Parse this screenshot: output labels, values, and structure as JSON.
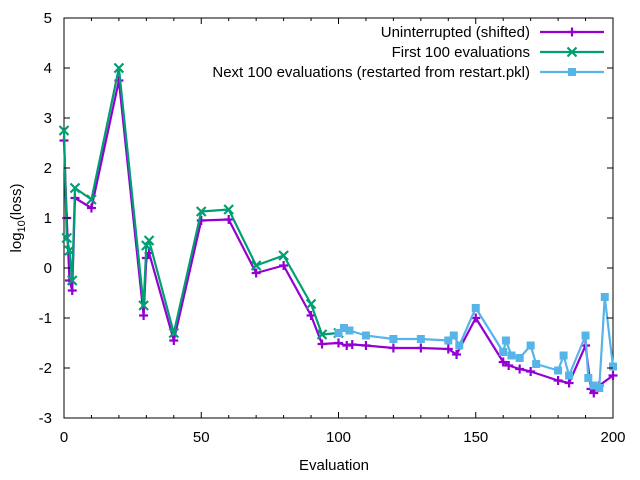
{
  "chart_data": {
    "type": "line",
    "title": "",
    "xlabel": "Evaluation",
    "ylabel": {
      "prefix": "log",
      "sub": "10",
      "suffix": "(loss)"
    },
    "xlim": [
      0,
      200
    ],
    "ylim": [
      -3,
      5
    ],
    "xticks": [
      "0",
      "50",
      "100",
      "150",
      "200"
    ],
    "yticks": [
      "-3",
      "-2",
      "-1",
      "0",
      "1",
      "2",
      "3",
      "4",
      "5"
    ],
    "grid": false,
    "legend_position": "top-right",
    "series": [
      {
        "name": "Uninterrupted (shifted)",
        "color": "#9400d3",
        "marker": "plus",
        "x": [
          0,
          1,
          2,
          3,
          4,
          10,
          20,
          29,
          30,
          31,
          40,
          50,
          60,
          70,
          80,
          90,
          94,
          100,
          103,
          105,
          110,
          120,
          130,
          140,
          143,
          150,
          160,
          162,
          166,
          170,
          180,
          184,
          190,
          192,
          193,
          195,
          200
        ],
        "y": [
          2.55,
          1.0,
          -0.25,
          -0.45,
          1.4,
          1.2,
          3.75,
          -0.95,
          0.2,
          0.3,
          -1.45,
          0.95,
          0.97,
          -0.1,
          0.05,
          -0.95,
          -1.52,
          -1.5,
          -1.55,
          -1.53,
          -1.55,
          -1.6,
          -1.6,
          -1.62,
          -1.73,
          -1.0,
          -1.88,
          -1.95,
          -2.02,
          -2.07,
          -2.25,
          -2.3,
          -1.55,
          -2.42,
          -2.5,
          -2.35,
          -2.15
        ]
      },
      {
        "name": "First 100 evaluations",
        "color": "#009e73",
        "marker": "cross",
        "x": [
          0,
          1,
          2,
          3,
          4,
          10,
          20,
          29,
          30,
          31,
          40,
          50,
          60,
          70,
          80,
          90,
          94,
          100
        ],
        "y": [
          2.75,
          0.6,
          0.35,
          -0.25,
          1.6,
          1.37,
          4.0,
          -0.75,
          0.45,
          0.55,
          -1.3,
          1.13,
          1.17,
          0.05,
          0.25,
          -0.72,
          -1.33,
          -1.3
        ]
      },
      {
        "name": "Next 100 evaluations (restarted from restart.pkl)",
        "color": "#56b4e9",
        "marker": "square",
        "x": [
          100,
          102,
          104,
          110,
          120,
          130,
          140,
          142,
          144,
          150,
          160,
          161,
          163,
          166,
          170,
          172,
          180,
          182,
          184,
          190,
          191,
          193,
          195,
          197,
          200
        ],
        "y": [
          -1.3,
          -1.2,
          -1.25,
          -1.35,
          -1.42,
          -1.42,
          -1.45,
          -1.35,
          -1.55,
          -0.8,
          -1.68,
          -1.45,
          -1.75,
          -1.8,
          -1.55,
          -1.92,
          -2.05,
          -1.75,
          -2.15,
          -1.35,
          -2.2,
          -2.35,
          -2.4,
          -0.58,
          -1.97
        ]
      }
    ]
  }
}
